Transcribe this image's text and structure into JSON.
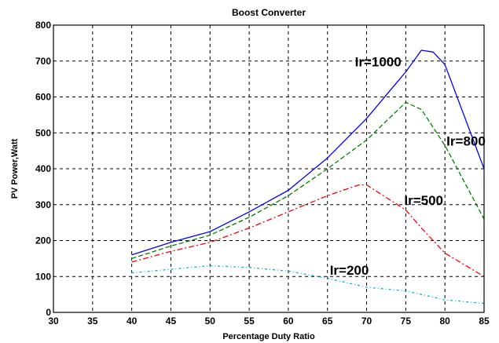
{
  "chart_data": {
    "type": "line",
    "title": "Boost Converter",
    "xlabel": "Percentage Duty Ratio",
    "ylabel": "PV Power,Watt",
    "xlim": [
      30,
      85
    ],
    "ylim": [
      0,
      800
    ],
    "xticks": [
      30,
      35,
      40,
      45,
      50,
      55,
      60,
      65,
      70,
      75,
      80,
      85
    ],
    "yticks": [
      0,
      100,
      200,
      300,
      400,
      500,
      600,
      700,
      800
    ],
    "grid": true,
    "series": [
      {
        "name": "Ir=1000",
        "color": "#0000ff",
        "dash": "solid",
        "x": [
          40,
          45,
          50,
          55,
          60,
          65,
          70,
          75,
          77,
          78.5,
          80,
          85
        ],
        "y": [
          160,
          195,
          225,
          280,
          340,
          430,
          540,
          670,
          730,
          725,
          690,
          400
        ]
      },
      {
        "name": "Ir=800",
        "color": "#008000",
        "dash": "dashed",
        "x": [
          40,
          45,
          50,
          55,
          60,
          65,
          70,
          75,
          77,
          80,
          85
        ],
        "y": [
          150,
          185,
          215,
          265,
          325,
          400,
          480,
          585,
          565,
          465,
          260
        ]
      },
      {
        "name": "Ir=500",
        "color": "#ff0000",
        "dash": "dashdot",
        "x": [
          40,
          45,
          50,
          55,
          60,
          65,
          69,
          70,
          75,
          77,
          80,
          85
        ],
        "y": [
          140,
          170,
          195,
          235,
          280,
          325,
          355,
          355,
          285,
          235,
          165,
          100
        ]
      },
      {
        "name": "Ir=200",
        "color": "#00bbbb",
        "dash": "dotdash",
        "x": [
          40,
          45,
          50,
          55,
          60,
          65,
          70,
          75,
          80,
          85
        ],
        "y": [
          110,
          120,
          130,
          125,
          115,
          95,
          70,
          60,
          35,
          25
        ]
      }
    ],
    "annotations": [
      {
        "text": "Ir=1000",
        "x": 68.5,
        "y": 685
      },
      {
        "text": "Ir=800",
        "x": 80.2,
        "y": 465
      },
      {
        "text": "Ir=500",
        "x": 74.8,
        "y": 300
      },
      {
        "text": "Ir=200",
        "x": 65.3,
        "y": 105
      }
    ]
  }
}
